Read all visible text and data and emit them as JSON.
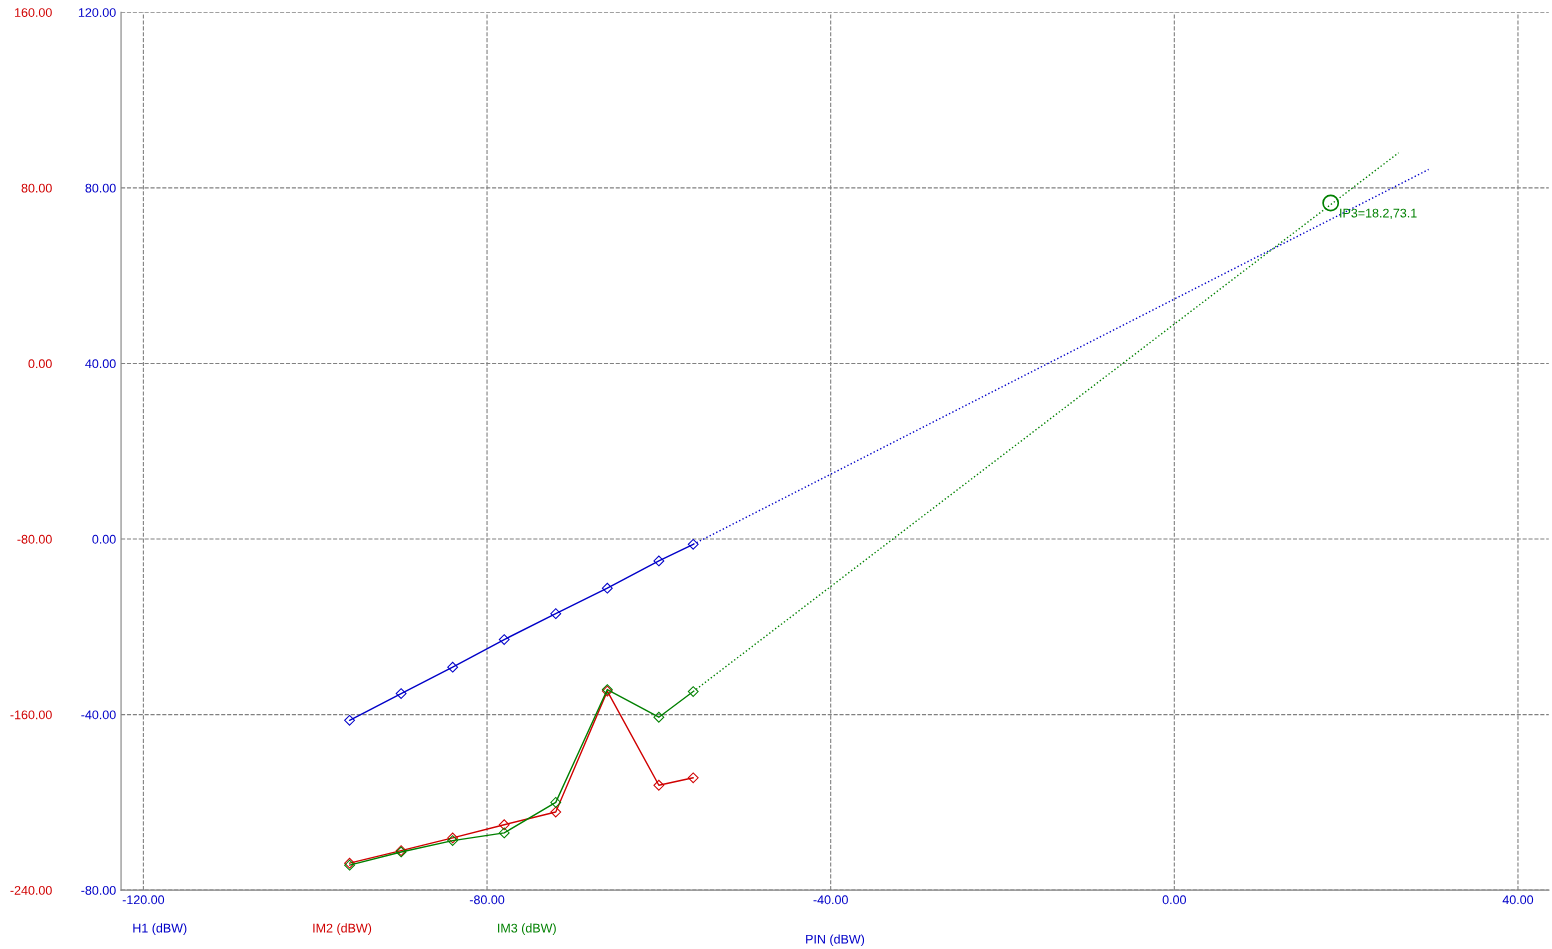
{
  "chart_data": {
    "type": "line",
    "xlabel": "PIN (dBW)",
    "xlim": [
      -122.6,
      43.6
    ],
    "xticks": [
      {
        "value": -120,
        "label": "-120.00"
      },
      {
        "value": -80,
        "label": "-80.00"
      },
      {
        "value": -40,
        "label": "-40.00"
      },
      {
        "value": 0,
        "label": "0.00"
      },
      {
        "value": 40,
        "label": "40.00"
      }
    ],
    "ylim": [
      -80,
      120
    ],
    "yticks": [
      {
        "value": -80,
        "label": "-80.00"
      },
      {
        "value": -40,
        "label": "-40.00"
      },
      {
        "value": 0,
        "label": "0.00"
      },
      {
        "value": 40,
        "label": "40.00"
      },
      {
        "value": 80,
        "label": "80.00"
      },
      {
        "value": 120,
        "label": "120.00"
      }
    ],
    "y2lim": [
      -240,
      160
    ],
    "y2ticks": [
      {
        "value": -240,
        "label": "-240.00"
      },
      {
        "value": -160,
        "label": "-160.00"
      },
      {
        "value": -80,
        "label": "-80.00"
      },
      {
        "value": 0,
        "label": "0.00"
      },
      {
        "value": 80,
        "label": "80.00"
      },
      {
        "value": 160,
        "label": "160.00"
      }
    ],
    "grid": true,
    "legend": "bottom",
    "series": [
      {
        "name": "H1 (dBW)",
        "color": "#0000c8",
        "marker": "diamond",
        "line_style": "solid",
        "x": [
          -96,
          -90,
          -84,
          -78,
          -72,
          -66,
          -60,
          -56
        ],
        "values": [
          -41.3,
          -35.2,
          -29.2,
          -22.9,
          -17.0,
          -11.2,
          -5.0,
          -1.2
        ]
      },
      {
        "name": "IM2 (dBW)",
        "color": "#d00000",
        "marker": "diamond",
        "line_style": "solid",
        "axis": "y2",
        "x": [
          -96,
          -90,
          -84,
          -78,
          -72,
          -66,
          -60,
          -56
        ],
        "values": [
          -227.7,
          -222.0,
          -216.2,
          -210.2,
          -204.4,
          -149.3,
          -192.2,
          -188.8
        ]
      },
      {
        "name": "IM3 (dBW)",
        "color": "#008000",
        "marker": "diamond",
        "line_style": "solid",
        "axis": "y2",
        "x": [
          -96,
          -90,
          -84,
          -78,
          -72,
          -66,
          -60,
          -56
        ],
        "values": [
          -228.6,
          -222.6,
          -217.4,
          -213.9,
          -200.0,
          -148.6,
          -161.2,
          -149.5
        ]
      },
      {
        "color": "#0000c8",
        "marker": "none",
        "line_style": "dotted",
        "x": [
          -56,
          29.6
        ],
        "values": [
          -1.2,
          84.2
        ]
      },
      {
        "color": "#008000",
        "marker": "none",
        "line_style": "dotted",
        "axis": "y2",
        "x": [
          -56,
          26.1
        ],
        "values": [
          -149.5,
          96.0
        ]
      },
      {
        "color": "#008000",
        "type": "scatter",
        "marker": "circle",
        "axis": "y2",
        "x": [
          18.2
        ],
        "values": [
          73.1
        ]
      }
    ],
    "annotations": [
      {
        "text": "IP3=18.2,73.1",
        "x": 18.2,
        "y": 73.1
      }
    ]
  }
}
